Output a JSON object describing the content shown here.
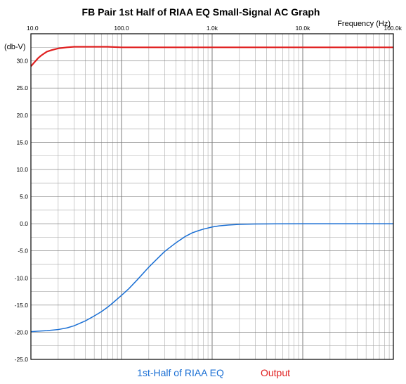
{
  "chart_data": {
    "type": "line",
    "title": "FB Pair 1st Half of RIAA EQ Small-Signal AC Graph",
    "xlabel": "Frequency  (Hz)",
    "ylabel": "(db-V)",
    "x_scale": "log",
    "xlim": [
      10,
      100000
    ],
    "ylim": [
      -25,
      35
    ],
    "x_ticks": [
      {
        "value": 10,
        "label": "10.0"
      },
      {
        "value": 100,
        "label": "100.0"
      },
      {
        "value": 1000,
        "label": "1.0k"
      },
      {
        "value": 10000,
        "label": "10.0k"
      },
      {
        "value": 100000,
        "label": "100.0k"
      }
    ],
    "y_ticks": [
      {
        "value": 30,
        "label": "30.0"
      },
      {
        "value": 25,
        "label": "25.0"
      },
      {
        "value": 20,
        "label": "20.0"
      },
      {
        "value": 15,
        "label": "15.0"
      },
      {
        "value": 10,
        "label": "10.0"
      },
      {
        "value": 5,
        "label": "5.0"
      },
      {
        "value": 0,
        "label": "0.0"
      },
      {
        "value": -5,
        "label": "-5.0"
      },
      {
        "value": -10,
        "label": "-10.0"
      },
      {
        "value": -15,
        "label": "-15.0"
      },
      {
        "value": -20,
        "label": "-20.0"
      },
      {
        "value": -25,
        "label": "-25.0"
      }
    ],
    "grid": true,
    "legend_position": "bottom",
    "series": [
      {
        "name": "1st-Half of RIAA EQ",
        "color": "#1a6fd4",
        "x": [
          10,
          12,
          15,
          20,
          25,
          30,
          40,
          50,
          60,
          70,
          80,
          100,
          120,
          150,
          200,
          250,
          300,
          400,
          500,
          600,
          700,
          800,
          1000,
          1200,
          1500,
          2000,
          3000,
          5000,
          10000,
          20000,
          50000,
          100000
        ],
        "y": [
          -19.9,
          -19.8,
          -19.7,
          -19.5,
          -19.2,
          -18.8,
          -17.9,
          -17.0,
          -16.2,
          -15.4,
          -14.6,
          -13.2,
          -12.0,
          -10.3,
          -8.0,
          -6.4,
          -5.1,
          -3.5,
          -2.4,
          -1.7,
          -1.3,
          -1.0,
          -0.6,
          -0.4,
          -0.25,
          -0.12,
          -0.05,
          -0.02,
          0.0,
          0.0,
          0.0,
          0.0
        ]
      },
      {
        "name": "Output",
        "color": "#e02020",
        "x": [
          10,
          11,
          12,
          13,
          15,
          17,
          20,
          25,
          30,
          40,
          50,
          70,
          100,
          200,
          500,
          1000,
          10000,
          100000
        ],
        "y": [
          29.0,
          29.8,
          30.5,
          31.0,
          31.7,
          32.0,
          32.3,
          32.5,
          32.6,
          32.6,
          32.6,
          32.6,
          32.5,
          32.5,
          32.5,
          32.5,
          32.5,
          32.5
        ]
      }
    ]
  }
}
